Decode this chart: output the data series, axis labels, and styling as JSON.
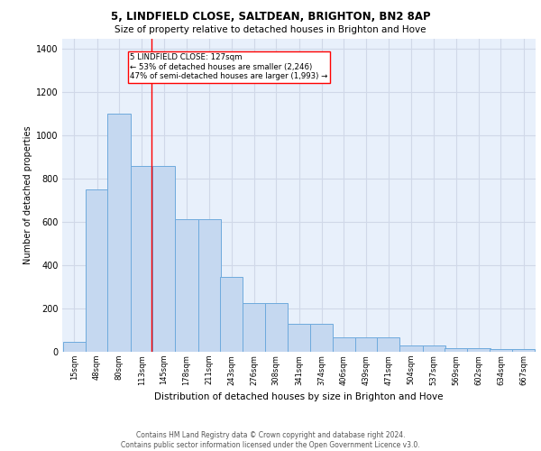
{
  "title1": "5, LINDFIELD CLOSE, SALTDEAN, BRIGHTON, BN2 8AP",
  "title2": "Size of property relative to detached houses in Brighton and Hove",
  "xlabel": "Distribution of detached houses by size in Brighton and Hove",
  "ylabel": "Number of detached properties",
  "footer": "Contains HM Land Registry data © Crown copyright and database right 2024.\nContains public sector information licensed under the Open Government Licence v3.0.",
  "categories": [
    "15sqm",
    "48sqm",
    "80sqm",
    "113sqm",
    "145sqm",
    "178sqm",
    "211sqm",
    "243sqm",
    "276sqm",
    "308sqm",
    "341sqm",
    "374sqm",
    "406sqm",
    "439sqm",
    "471sqm",
    "504sqm",
    "537sqm",
    "569sqm",
    "602sqm",
    "634sqm",
    "667sqm"
  ],
  "values": [
    47,
    750,
    1100,
    860,
    860,
    615,
    615,
    345,
    225,
    225,
    130,
    130,
    65,
    65,
    65,
    28,
    28,
    18,
    18,
    12,
    12
  ],
  "bar_color": "#c5d8f0",
  "bar_edge_color": "#6eaadd",
  "bg_color": "#e8f0fb",
  "grid_color": "#d0d8e8",
  "property_line_x": 127,
  "property_line_color": "red",
  "annotation_text": "5 LINDFIELD CLOSE: 127sqm\n← 53% of detached houses are smaller (2,246)\n47% of semi-detached houses are larger (1,993) →",
  "annotation_box_color": "white",
  "annotation_box_edge": "red",
  "ylim": [
    0,
    1450
  ],
  "yticks": [
    0,
    200,
    400,
    600,
    800,
    1000,
    1200,
    1400
  ],
  "bin_width": 33
}
